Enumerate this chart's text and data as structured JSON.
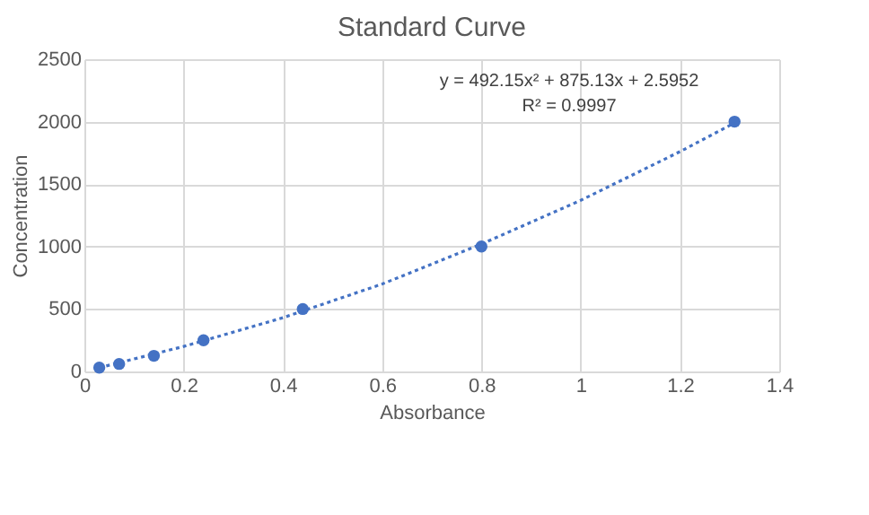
{
  "chart_data": {
    "type": "scatter",
    "title": "Standard Curve",
    "xlabel": "Absorbance",
    "ylabel": "Concentration",
    "series": [
      {
        "color": "#4472c4",
        "marker": "circle",
        "x": [
          0.03,
          0.07,
          0.14,
          0.24,
          0.44,
          0.8,
          1.31
        ],
        "values": [
          30,
          60,
          125,
          250,
          500,
          1000,
          2000
        ]
      },
      {
        "type": "line",
        "color": "#4472c4",
        "marker": "none",
        "line_style": "dotted",
        "x": [
          0.03,
          0.2,
          0.4,
          0.6,
          0.8,
          1.0,
          1.2,
          1.31
        ],
        "values": [
          30,
          200,
          430,
          700,
          1020,
          1370,
          1760,
          1990
        ]
      }
    ],
    "annotations": [
      "y = 492.15x² + 875.13x + 2.5952",
      "R² = 0.9997"
    ],
    "xlim": [
      0,
      1.4
    ],
    "xticks": [
      0,
      0.2,
      0.4,
      0.6,
      0.8,
      1,
      1.2,
      1.4
    ],
    "ylim": [
      0,
      2500
    ],
    "yticks": [
      0,
      500,
      1000,
      1500,
      2000,
      2500
    ],
    "grid": true
  }
}
